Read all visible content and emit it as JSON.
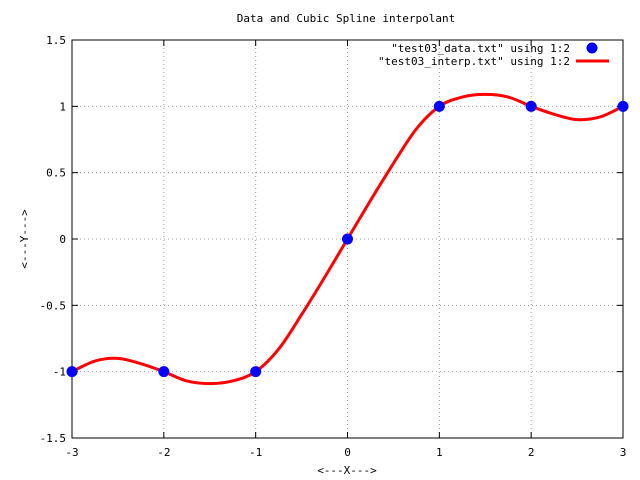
{
  "chart_data": {
    "type": "line",
    "title": "Data and Cubic Spline interpolant",
    "xlabel": "<---X--->",
    "ylabel": "<---Y--->",
    "xlim": [
      -3,
      3
    ],
    "ylim": [
      -1.5,
      1.5
    ],
    "xticks": [
      -3,
      -2,
      -1,
      0,
      1,
      2,
      3
    ],
    "yticks": [
      -1.5,
      -1,
      -0.5,
      0,
      0.5,
      1,
      1.5
    ],
    "xtick_labels": [
      "-3",
      "-2",
      "-1",
      "0",
      "1",
      "2",
      "3"
    ],
    "ytick_labels": [
      "-1.5",
      "-1",
      "-0.5",
      "0",
      "0.5",
      "1",
      "1.5"
    ],
    "grid": true,
    "legend_position": "top-right",
    "series": [
      {
        "name": "\"test03_data.txt\" using 1:2",
        "kind": "scatter",
        "color": "#0000ff",
        "x": [
          -3,
          -2,
          -1,
          0,
          1,
          2,
          3
        ],
        "y": [
          -1,
          -1,
          -1,
          0,
          1,
          1,
          1
        ]
      },
      {
        "name": "\"test03_interp.txt\" using 1:2",
        "kind": "line",
        "color": "#ff0000",
        "x": [
          -3,
          -2.75,
          -2.5,
          -2.25,
          -2,
          -1.75,
          -1.5,
          -1.25,
          -1,
          -0.75,
          -0.5,
          -0.25,
          0,
          0.25,
          0.5,
          0.75,
          1,
          1.25,
          1.5,
          1.75,
          2,
          2.25,
          2.5,
          2.75,
          3
        ],
        "y": [
          -1,
          -0.92,
          -0.9,
          -0.94,
          -1,
          -1.07,
          -1.09,
          -1.07,
          -1,
          -0.83,
          -0.57,
          -0.29,
          0,
          0.29,
          0.57,
          0.83,
          1,
          1.07,
          1.09,
          1.07,
          1,
          0.94,
          0.9,
          0.92,
          1
        ]
      }
    ]
  }
}
